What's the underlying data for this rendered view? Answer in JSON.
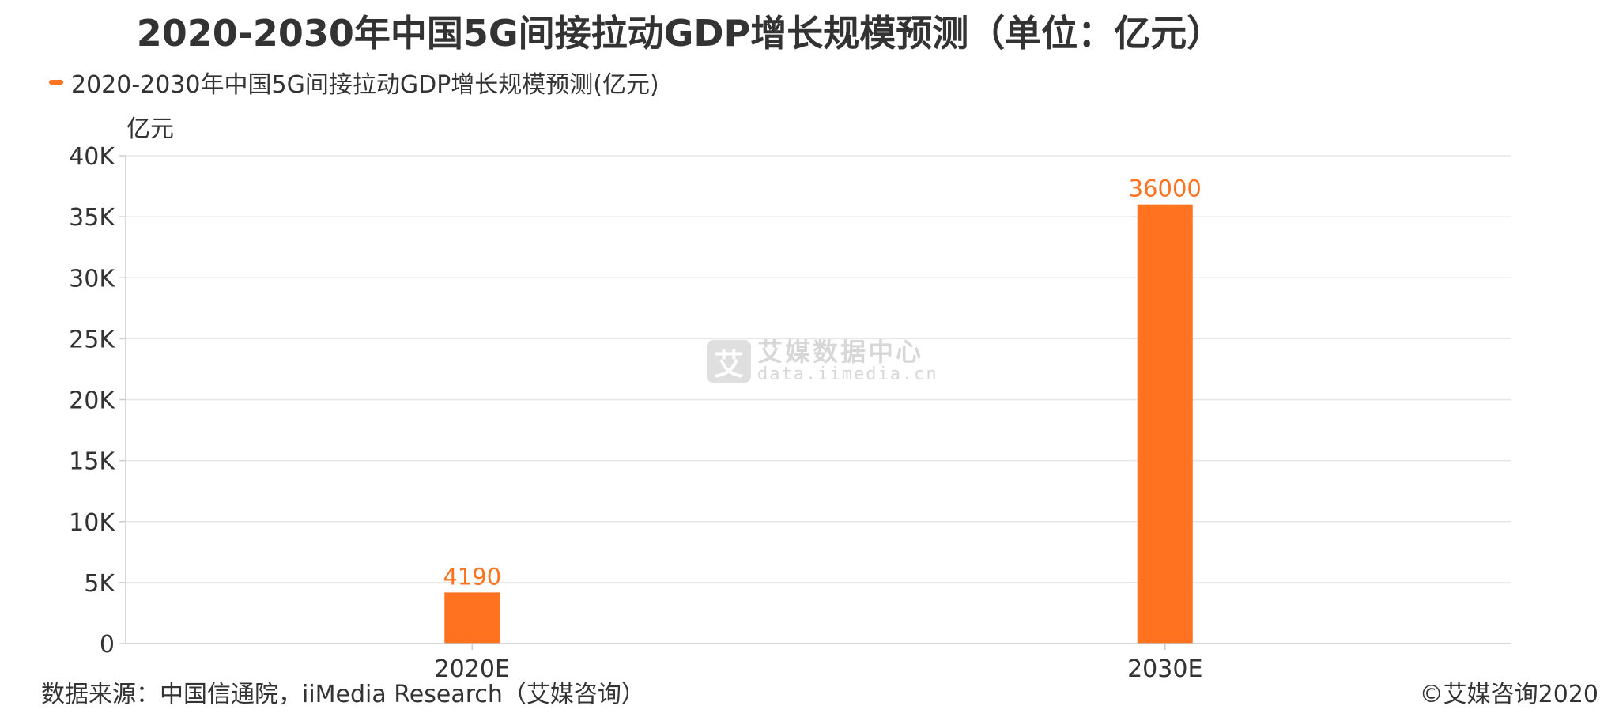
{
  "title": "2020-2030年中国5G间接拉动GDP增长规模预测（单位：亿元）",
  "legend_label": "2020-2030年中国5G间接拉动GDP增长规模预测(亿元)",
  "unit_label": "亿元",
  "watermark": {
    "logo_char": "艾",
    "cn": "艾媒数据中心",
    "en": "data.iimedia.cn"
  },
  "source": "数据来源：中国信通院，iiMedia Research（艾媒咨询）",
  "copyright": "©艾媒咨询2020",
  "colors": {
    "bar": "#ff7220",
    "grid": "#e6e6e6",
    "axis": "#cccccc",
    "text": "#333333"
  },
  "chart_data": {
    "type": "bar",
    "categories": [
      "2020E",
      "2030E"
    ],
    "values": [
      4190,
      36000
    ],
    "value_labels": [
      "4190",
      "36000"
    ],
    "ylim": [
      0,
      40000
    ],
    "yticks": [
      0,
      5000,
      10000,
      15000,
      20000,
      25000,
      30000,
      35000,
      40000
    ],
    "ytick_labels": [
      "0",
      "5K",
      "10K",
      "15K",
      "20K",
      "25K",
      "30K",
      "35K",
      "40K"
    ],
    "ylabel": "亿元",
    "grid": true,
    "legend_position": "top-left"
  }
}
